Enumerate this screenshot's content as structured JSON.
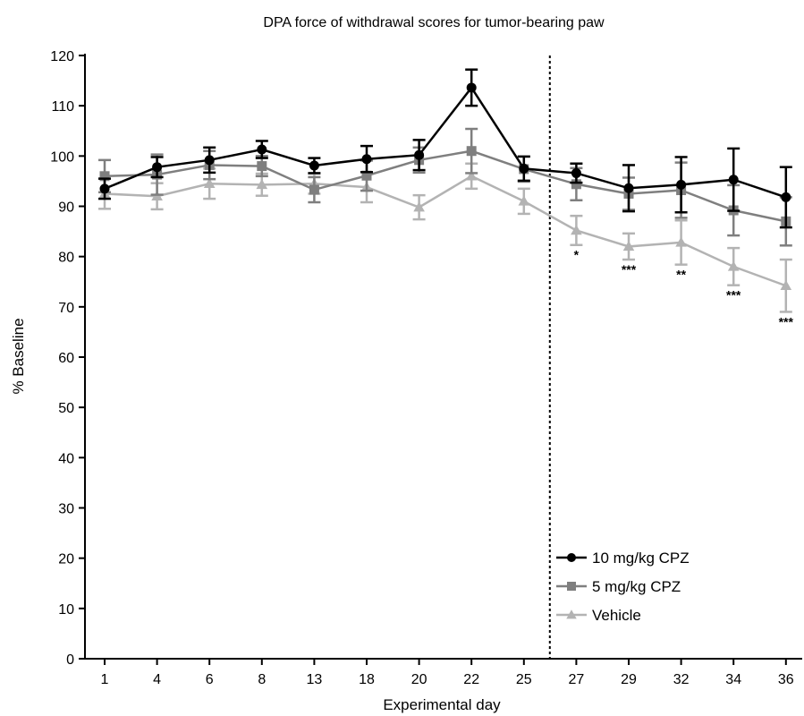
{
  "chart_data": {
    "type": "line",
    "title": "DPA force of withdrawal scores for tumor-bearing paw",
    "xlabel": "Experimental day",
    "ylabel": "% Baseline",
    "categories": [
      "1",
      "4",
      "6",
      "8",
      "13",
      "18",
      "20",
      "22",
      "25",
      "27",
      "29",
      "32",
      "34",
      "36"
    ],
    "ylim": [
      0,
      120
    ],
    "yticks": [
      0,
      10,
      20,
      30,
      40,
      50,
      60,
      70,
      80,
      90,
      100,
      110,
      120
    ],
    "grid": false,
    "legend_position": "bottom-right",
    "reference_line": {
      "type": "vertical",
      "style": "dotted",
      "at_category": "25"
    },
    "series": [
      {
        "name": "10 mg/kg CPZ",
        "marker": "circle",
        "color": "#000000",
        "values": [
          93.5,
          97.8,
          99.2,
          101.3,
          98.1,
          99.4,
          100.2,
          113.6,
          97.5,
          96.6,
          93.6,
          94.3,
          95.3,
          91.8
        ],
        "errors": [
          2.0,
          2.0,
          2.5,
          1.7,
          1.5,
          2.6,
          3.0,
          3.6,
          2.4,
          1.9,
          4.6,
          5.5,
          6.2,
          6.0
        ]
      },
      {
        "name": "5 mg/kg CPZ",
        "marker": "square",
        "color": "#7f7f7f",
        "values": [
          96.0,
          96.3,
          98.2,
          98.0,
          93.3,
          96.1,
          99.2,
          101.0,
          97.4,
          94.4,
          92.5,
          93.2,
          89.2,
          87.0
        ],
        "errors": [
          3.2,
          4.0,
          2.8,
          2.0,
          2.5,
          3.0,
          2.5,
          4.4,
          2.5,
          3.2,
          3.2,
          5.5,
          5.0,
          4.8
        ]
      },
      {
        "name": "Vehicle",
        "marker": "triangle",
        "color": "#b3b3b3",
        "values": [
          92.5,
          92.0,
          94.5,
          94.3,
          94.5,
          93.8,
          89.8,
          96.0,
          91.0,
          85.2,
          82.0,
          82.8,
          78.0,
          74.2
        ],
        "errors": [
          3.0,
          2.6,
          3.0,
          2.2,
          2.0,
          3.0,
          2.4,
          2.5,
          2.5,
          2.9,
          2.6,
          4.4,
          3.7,
          5.2
        ]
      }
    ],
    "annotations": [
      {
        "category": "27",
        "text": "*"
      },
      {
        "category": "29",
        "text": "***"
      },
      {
        "category": "32",
        "text": "**"
      },
      {
        "category": "34",
        "text": "***"
      },
      {
        "category": "36",
        "text": "***"
      }
    ]
  }
}
